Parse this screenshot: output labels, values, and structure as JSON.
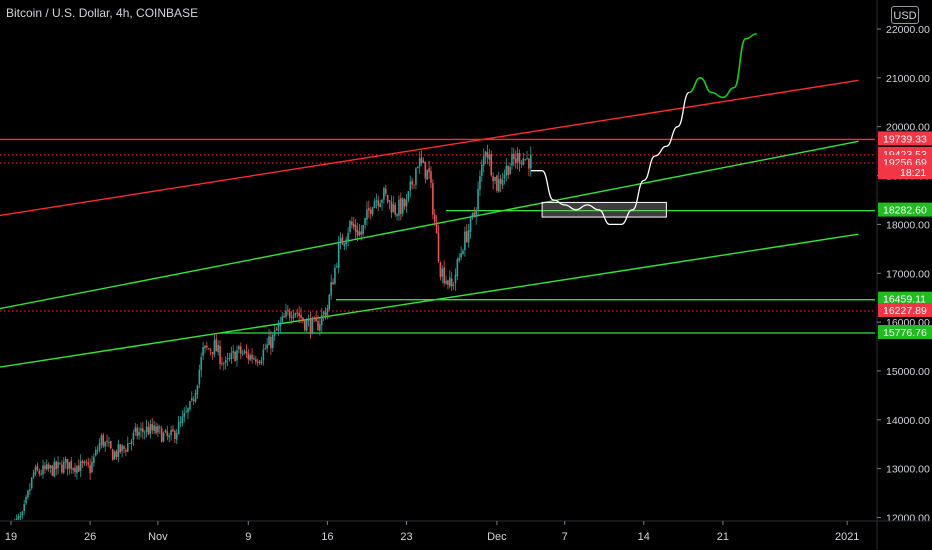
{
  "header": {
    "symbol_title": "Bitcoin / U.S. Dollar, 4h, COINBASE",
    "currency_button": "USD"
  },
  "colors": {
    "background": "#000000",
    "candle_up": "#26a69a",
    "candle_down": "#ef5350",
    "trendline_red": "#ff2a2a",
    "trendline_green": "#2ee62e",
    "projection_white": "#ffffff",
    "projection_green": "#19cc19"
  },
  "chart_data": {
    "type": "candlestick",
    "timeframe": "4h",
    "exchange": "COINBASE",
    "y_axis": {
      "min": 12000,
      "max": 22000,
      "side": "right",
      "ticks": [
        12000,
        13000,
        14000,
        15000,
        16000,
        17000,
        18000,
        19000,
        20000,
        21000,
        22000
      ],
      "tick_labels": [
        "12000.00",
        "13000.00",
        "14000.00",
        "15000.00",
        "16000.00",
        "17000.00",
        "18000.00",
        "19000.00",
        "20000.00",
        "21000.00",
        "22000.00"
      ]
    },
    "x_axis": {
      "start": "2020-10-19",
      "end": "2021-01-01",
      "ticks": [
        {
          "date": "2020-10-19",
          "label": "19"
        },
        {
          "date": "2020-10-26",
          "label": "26"
        },
        {
          "date": "2020-11-01",
          "label": "Nov"
        },
        {
          "date": "2020-11-09",
          "label": "9"
        },
        {
          "date": "2020-11-16",
          "label": "16"
        },
        {
          "date": "2020-11-23",
          "label": "23"
        },
        {
          "date": "2020-12-01",
          "label": "Dec"
        },
        {
          "date": "2020-12-07",
          "label": "7"
        },
        {
          "date": "2020-12-14",
          "label": "14"
        },
        {
          "date": "2020-12-21",
          "label": "21"
        },
        {
          "date": "2021-01-01",
          "label": "2021"
        }
      ]
    },
    "price_path": [
      [
        "2020-10-19",
        11800
      ],
      [
        "2020-10-20",
        12000
      ],
      [
        "2020-10-21",
        12900
      ],
      [
        "2020-10-22",
        12950
      ],
      [
        "2020-10-23",
        13000
      ],
      [
        "2020-10-24",
        13100
      ],
      [
        "2020-10-25",
        13050
      ],
      [
        "2020-10-26",
        13000
      ],
      [
        "2020-10-27",
        13600
      ],
      [
        "2020-10-28",
        13300
      ],
      [
        "2020-10-29",
        13400
      ],
      [
        "2020-10-30",
        13700
      ],
      [
        "2020-10-31",
        13800
      ],
      [
        "2020-11-01",
        13750
      ],
      [
        "2020-11-02",
        13600
      ],
      [
        "2020-11-03",
        13900
      ],
      [
        "2020-11-04",
        14300
      ],
      [
        "2020-11-05",
        15400
      ],
      [
        "2020-11-06",
        15500
      ],
      [
        "2020-11-07",
        15100
      ],
      [
        "2020-11-08",
        15400
      ],
      [
        "2020-11-09",
        15300
      ],
      [
        "2020-11-10",
        15300
      ],
      [
        "2020-11-11",
        15600
      ],
      [
        "2020-11-12",
        16000
      ],
      [
        "2020-11-13",
        16300
      ],
      [
        "2020-11-14",
        16000
      ],
      [
        "2020-11-15",
        15900
      ],
      [
        "2020-11-16",
        16300
      ],
      [
        "2020-11-17",
        17500
      ],
      [
        "2020-11-18",
        18000
      ],
      [
        "2020-11-19",
        17800
      ],
      [
        "2020-11-20",
        18500
      ],
      [
        "2020-11-21",
        18600
      ],
      [
        "2020-11-22",
        18300
      ],
      [
        "2020-11-23",
        18400
      ],
      [
        "2020-11-24",
        19300
      ],
      [
        "2020-11-25",
        19000
      ],
      [
        "2020-11-26",
        17100
      ],
      [
        "2020-11-27",
        16700
      ],
      [
        "2020-11-28",
        17600
      ],
      [
        "2020-11-29",
        18200
      ],
      [
        "2020-11-30",
        19600
      ],
      [
        "2020-12-01",
        18800
      ],
      [
        "2020-12-02",
        19200
      ],
      [
        "2020-12-03",
        19400
      ],
      [
        "2020-12-04",
        19300
      ]
    ],
    "projection_white": [
      [
        "2020-12-04",
        19100
      ],
      [
        "2020-12-05",
        19100
      ],
      [
        "2020-12-06",
        18500
      ],
      [
        "2020-12-07",
        18400
      ],
      [
        "2020-12-08",
        18300
      ],
      [
        "2020-12-09",
        18400
      ],
      [
        "2020-12-10",
        18300
      ],
      [
        "2020-12-11",
        18000
      ],
      [
        "2020-12-12",
        18000
      ],
      [
        "2020-12-13",
        18300
      ],
      [
        "2020-12-14",
        18900
      ],
      [
        "2020-12-15",
        19400
      ],
      [
        "2020-12-16",
        19600
      ],
      [
        "2020-12-17",
        20000
      ],
      [
        "2020-12-18",
        20700
      ]
    ],
    "projection_green": [
      [
        "2020-12-18",
        20700
      ],
      [
        "2020-12-19",
        21000
      ],
      [
        "2020-12-20",
        20700
      ],
      [
        "2020-12-21",
        20600
      ],
      [
        "2020-12-22",
        20800
      ],
      [
        "2020-12-23",
        21800
      ],
      [
        "2020-12-24",
        21900
      ]
    ],
    "trendlines": [
      {
        "color": "red",
        "from": [
          "2020-10-13",
          18000
        ],
        "to": [
          "2021-01-02",
          20950
        ]
      },
      {
        "color": "green",
        "from": [
          "2020-10-13",
          16050
        ],
        "to": [
          "2021-01-02",
          19700
        ]
      },
      {
        "color": "green",
        "from": [
          "2020-10-13",
          14900
        ],
        "to": [
          "2021-01-02",
          17800
        ]
      }
    ],
    "horizontal_levels": [
      {
        "value": 19739.33,
        "label": "19739.33",
        "style": "solid",
        "color": "red"
      },
      {
        "value": 19423.53,
        "label": "19423.53",
        "style": "dotted",
        "color": "red"
      },
      {
        "value": 19256.69,
        "label": "19256.69",
        "style": "dotted",
        "color": "red"
      },
      {
        "value": 18282.6,
        "label": "18282.60",
        "style": "solid",
        "color": "green"
      },
      {
        "value": 16459.11,
        "label": "16459.11",
        "style": "solid",
        "color": "green"
      },
      {
        "value": 16227.89,
        "label": "16227.89",
        "style": "dotted",
        "color": "red"
      },
      {
        "value": 15776.76,
        "label": "15776.76",
        "style": "solid",
        "color": "green"
      }
    ],
    "countdown_label": {
      "text": "18:21",
      "value": 19050
    },
    "zone_box": {
      "from": [
        "2020-12-05",
        18450
      ],
      "to": [
        "2020-12-16",
        18150
      ]
    },
    "legend": "none",
    "grid": false
  }
}
